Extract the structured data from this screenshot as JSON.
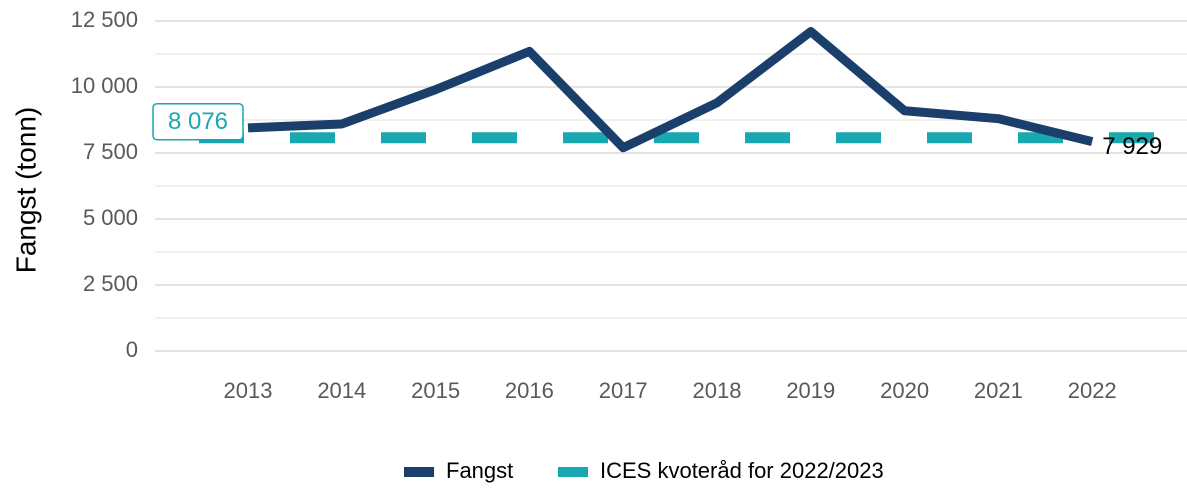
{
  "chart_data": {
    "type": "line",
    "y_label": "Fangst (tonn)",
    "categories": [
      "2013",
      "2014",
      "2015",
      "2016",
      "2017",
      "2018",
      "2019",
      "2020",
      "2021",
      "2022"
    ],
    "series": [
      {
        "name": "Fangst",
        "color": "#1b3f6b",
        "values": [
          8450,
          8600,
          9900,
          11350,
          7700,
          9400,
          12100,
          9100,
          8800,
          7929
        ],
        "value_labels": [
          null,
          null,
          null,
          null,
          null,
          null,
          null,
          null,
          null,
          "7 929"
        ]
      }
    ],
    "reference": {
      "name": "ICES kvoteråd for 2022/2023",
      "value": 8076,
      "value_label": "8 076",
      "color": "#19a7b0"
    },
    "ylim": [
      0,
      12500
    ],
    "yticks": [
      0,
      {
        "value": 2500,
        "label": "2 500"
      },
      {
        "value": 5000,
        "label": "5 000"
      },
      {
        "value": 7500,
        "label": "7 500"
      },
      {
        "value": 10000,
        "label": "10 000"
      },
      {
        "value": 12500,
        "label": "12 500"
      }
    ],
    "yminorticks": [
      1250,
      3750,
      6250,
      8750,
      11250
    ],
    "grid": true,
    "legend": "bottom"
  }
}
